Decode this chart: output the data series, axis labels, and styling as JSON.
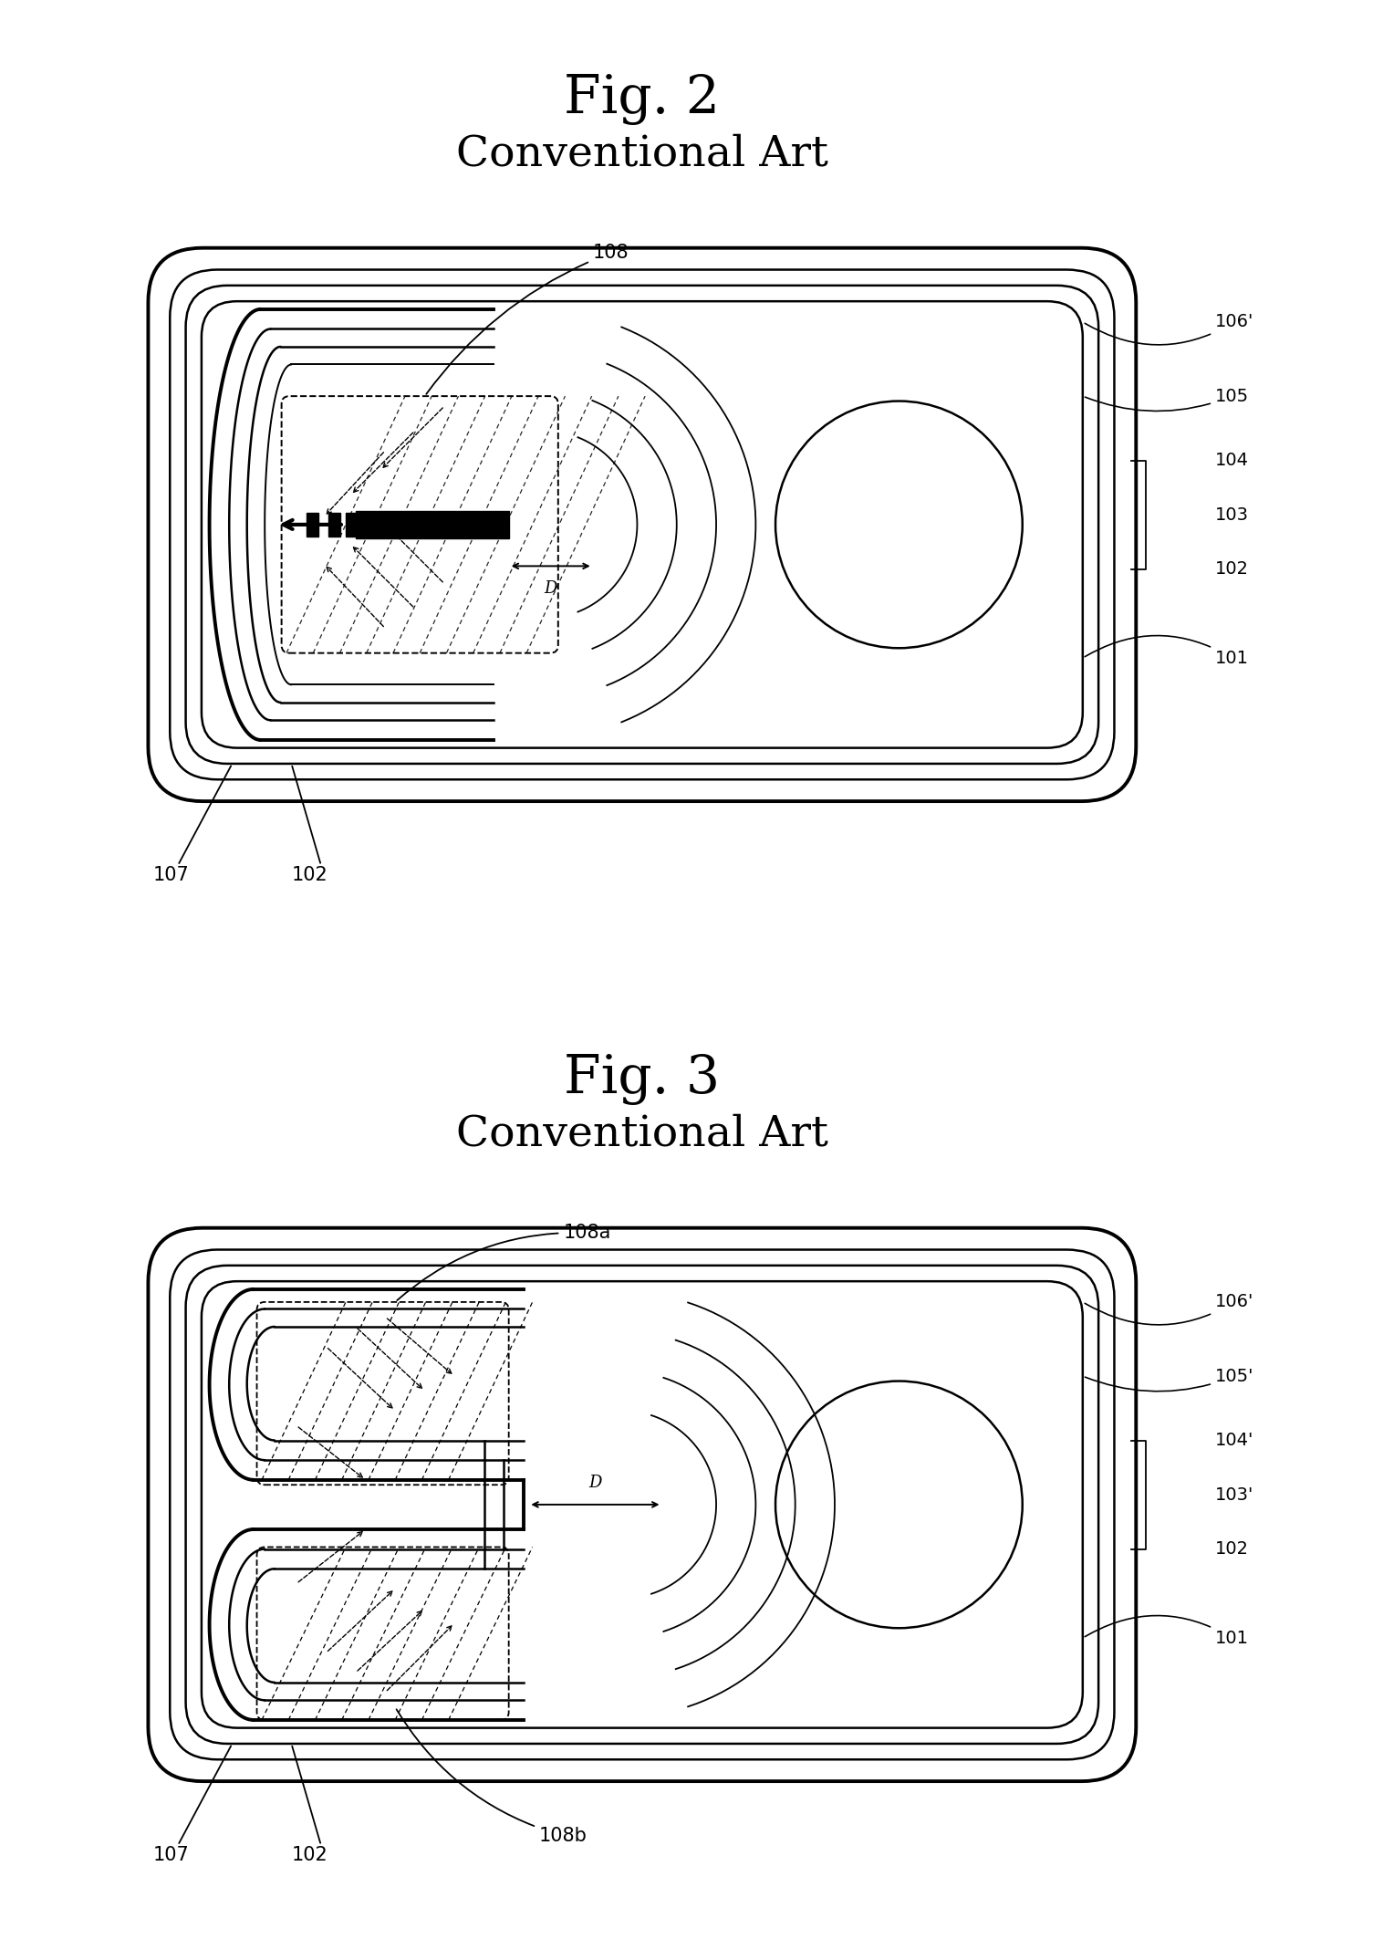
{
  "fig2_title": "Fig. 2",
  "fig2_subtitle": "Conventional Art",
  "fig3_title": "Fig. 3",
  "fig3_subtitle": "Conventional Art",
  "bg_color": "#ffffff"
}
